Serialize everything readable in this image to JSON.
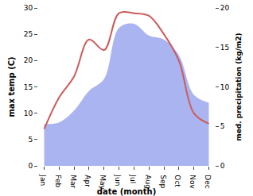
{
  "chart_data": {
    "type": "line",
    "categories": [
      "Jan",
      "Feb",
      "Mar",
      "Apr",
      "May",
      "Jun",
      "Jul",
      "Aug",
      "Sep",
      "Oct",
      "Nov",
      "Dec"
    ],
    "xlabel": "date (month)",
    "ylabel": "max temp (C)",
    "y2label": "med. precipitation (kg/m2)",
    "ylim": [
      0,
      30
    ],
    "yticks": [
      0,
      5,
      10,
      15,
      20,
      25,
      30
    ],
    "y2lim": [
      0,
      20
    ],
    "y2ticks": [
      0,
      5,
      10,
      15,
      20
    ],
    "grid": false,
    "series": [
      {
        "name": "med. precipitation (kg/m2)",
        "type": "area",
        "axis": "y2",
        "color": "#aab4f0",
        "line_style": "spline",
        "values": [
          5.3,
          5.5,
          7,
          9.5,
          11,
          17.5,
          18,
          16.5,
          16,
          14,
          9,
          8
        ]
      },
      {
        "name": "max temp (C)",
        "type": "line",
        "color": "#cc5b5b",
        "line_style": "spline",
        "values": [
          7,
          13,
          17,
          24,
          22,
          29,
          29,
          28.5,
          25,
          20,
          10,
          8
        ]
      }
    ]
  }
}
